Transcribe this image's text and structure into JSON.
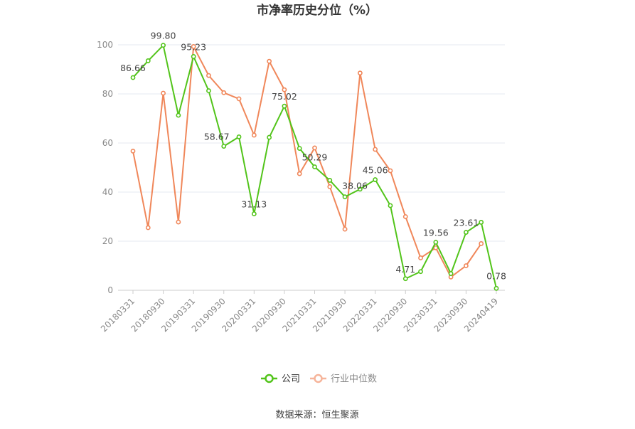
{
  "chart_data": {
    "type": "line",
    "title": "市净率历史分位（%）",
    "source": "数据来源：恒生聚源",
    "ylim": [
      0,
      100
    ],
    "yticks": [
      "0",
      "20",
      "40",
      "60",
      "80",
      "100"
    ],
    "x_tick_labels": [
      "20180331",
      "20180930",
      "20190331",
      "20190930",
      "20200331",
      "20200930",
      "20210331",
      "20210930",
      "20220331",
      "20220930",
      "20230331",
      "20230930",
      "20240419"
    ],
    "x": [
      "20180331",
      "20180630",
      "20180930",
      "20181231",
      "20190331",
      "20190630",
      "20190930",
      "20191231",
      "20200331",
      "20200630",
      "20200930",
      "20201231",
      "20210331",
      "20210630",
      "20210930",
      "20211231",
      "20220331",
      "20220630",
      "20220930",
      "20221231",
      "20230331",
      "20230630",
      "20230930",
      "20231231",
      "20240419"
    ],
    "series": [
      {
        "name": "公司",
        "color": "#52c41a",
        "values": [
          86.66,
          93.5,
          99.8,
          71.3,
          95.23,
          81.3,
          58.67,
          62.5,
          31.13,
          62.3,
          75.02,
          57.8,
          50.29,
          44.8,
          38.06,
          41.2,
          45.06,
          34.5,
          4.71,
          7.6,
          19.56,
          6.8,
          23.61,
          27.7,
          0.78
        ]
      },
      {
        "name": "行业中位数",
        "color": "#f0875a",
        "values": [
          56.7,
          25.5,
          80.3,
          27.8,
          99.3,
          87.5,
          80.5,
          78.0,
          63.2,
          93.3,
          81.7,
          47.5,
          58.0,
          42.2,
          24.9,
          88.5,
          57.4,
          48.7,
          30.0,
          13.2,
          17.3,
          5.4,
          10.0,
          19.0,
          null
        ]
      }
    ],
    "data_labels": [
      {
        "index": 0,
        "text": "86.66"
      },
      {
        "index": 2,
        "text": "99.80"
      },
      {
        "index": 4,
        "text": "95.23"
      },
      {
        "index": 6,
        "text": "58.67"
      },
      {
        "index": 8,
        "text": "31.13"
      },
      {
        "index": 10,
        "text": "75.02"
      },
      {
        "index": 12,
        "text": "50.29"
      },
      {
        "index": 14,
        "text": "38.06"
      },
      {
        "index": 16,
        "text": "45.06"
      },
      {
        "index": 18,
        "text": "4.71"
      },
      {
        "index": 20,
        "text": "19.56"
      },
      {
        "index": 22,
        "text": "23.61"
      },
      {
        "index": 24,
        "text": "0.78"
      }
    ],
    "grid": true,
    "legend_position": "bottom-center"
  }
}
